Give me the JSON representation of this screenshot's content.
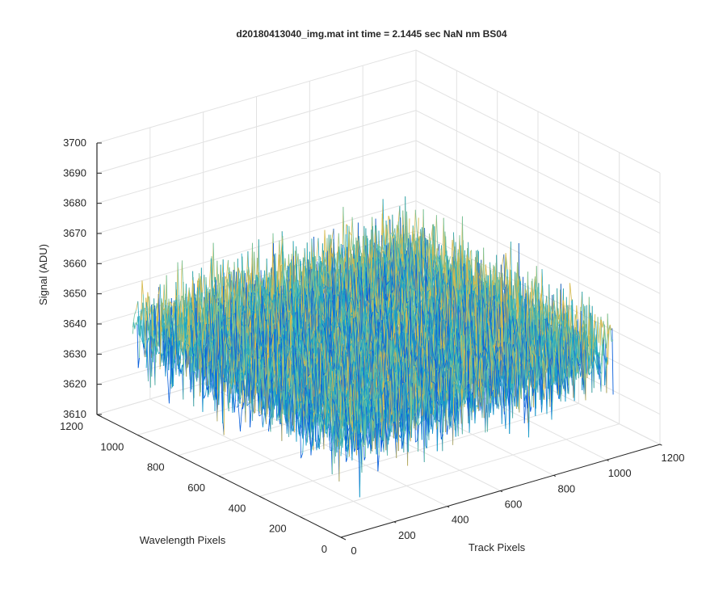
{
  "chart_data": {
    "type": "surface",
    "title": "d20180413040_img.mat int time = 2.1445 sec  NaN nm BS04",
    "xlabel": "Track Pixels",
    "ylabel": "Wavelength Pixels",
    "zlabel": "Signal (ADU)",
    "xlim": [
      0,
      1200
    ],
    "ylim": [
      0,
      1200
    ],
    "zlim": [
      3610,
      3700
    ],
    "x_ticks": [
      "0",
      "200",
      "400",
      "600",
      "800",
      "1000",
      "1200"
    ],
    "y_ticks": [
      "0",
      "200",
      "400",
      "600",
      "800",
      "1000",
      "1200"
    ],
    "z_ticks": [
      "3610",
      "3620",
      "3630",
      "3640",
      "3650",
      "3660",
      "3670",
      "3680",
      "3690",
      "3700"
    ],
    "data_extent": {
      "x": [
        0,
        1024
      ],
      "y": [
        0,
        1024
      ]
    },
    "signal_summary": {
      "mean": 3645,
      "std": 7,
      "min": 3610,
      "max": 3690
    },
    "colormap": [
      "#0a60dc",
      "#1da6c4",
      "#6cc2a0",
      "#d5b94d"
    ],
    "grid": true,
    "view": "3d-perspective"
  }
}
